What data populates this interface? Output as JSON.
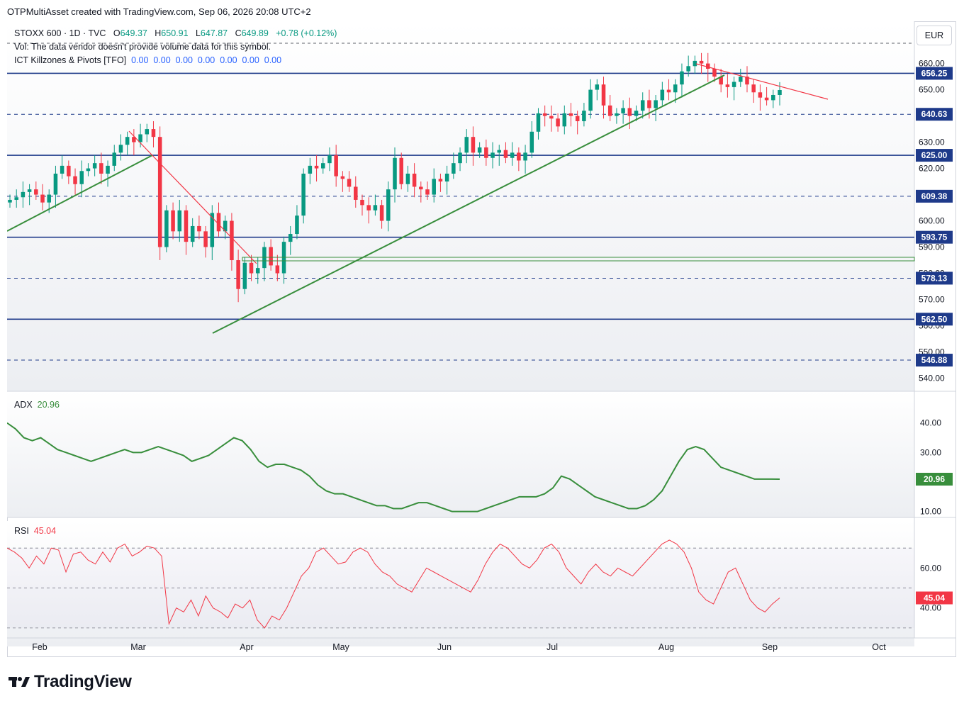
{
  "caption": "OTPMultiAsset created with TradingView.com, Sep 06, 2026 20:08 UTC+2",
  "legend": {
    "symbol": "STOXX 600 · 1D · TVC",
    "open_label": "O",
    "open": "649.37",
    "high_label": "H",
    "high": "650.91",
    "low_label": "L",
    "low": "647.87",
    "close_label": "C",
    "close": "649.89",
    "change": "+0.78 (+0.12%)",
    "vol_line": "Vol: The data vendor doesn't provide volume data for this symbol.",
    "indicator_name": "ICT Killzones & Pivots [TFO]",
    "indicator_values": "0.00  0.00  0.00  0.00  0.00  0.00  0.00"
  },
  "currency_button": "EUR",
  "adx": {
    "label": "ADX",
    "value": "20.96",
    "axis_ticks": [
      "40.00",
      "30.00",
      "10.00"
    ],
    "last_label": "20.96"
  },
  "rsi": {
    "label": "RSI",
    "value": "45.04",
    "axis_ticks": [
      "60.00",
      "40.00"
    ],
    "last_label": "45.04"
  },
  "branding": "TradingView",
  "colors": {
    "up": "#089981",
    "down": "#f23645",
    "trend_green": "#388e3c",
    "trend_red": "#f23645",
    "level": "#1e3a8a",
    "adx": "#388e3c",
    "rsi": "#f23645"
  },
  "chart_data": {
    "type": "candlestick",
    "symbol": "STOXX 600",
    "timeframe": "1D",
    "x_axis_months": [
      "Feb",
      "Mar",
      "Apr",
      "May",
      "Jun",
      "Jul",
      "Aug",
      "Sep",
      "Oct"
    ],
    "y_axis_ticks": [
      "660.00",
      "650.00",
      "630.00",
      "620.00",
      "600.00",
      "590.00",
      "580.00",
      "570.00",
      "560.00",
      "550.00",
      "540.00"
    ],
    "levels": [
      {
        "value": 656.25,
        "style": "solid",
        "label": "656.25"
      },
      {
        "value": 640.63,
        "style": "dashed",
        "label": "640.63"
      },
      {
        "value": 625.0,
        "style": "solid",
        "label": "625.00"
      },
      {
        "value": 609.38,
        "style": "dashed",
        "label": "609.38"
      },
      {
        "value": 593.75,
        "style": "solid",
        "label": "593.75"
      },
      {
        "value": 578.13,
        "style": "dashed",
        "label": "578.13"
      },
      {
        "value": 562.5,
        "style": "solid",
        "label": "562.50"
      },
      {
        "value": 546.88,
        "style": "dashed",
        "label": "546.88"
      }
    ],
    "close": [
      608,
      609,
      611,
      612,
      610,
      607,
      610,
      618,
      621,
      617,
      614,
      619,
      620,
      622,
      618,
      621,
      626,
      629,
      632,
      630,
      633,
      635,
      632,
      590,
      604,
      596,
      604,
      592,
      598,
      596,
      590,
      603,
      596,
      600,
      585,
      574,
      584,
      580,
      582,
      590,
      583,
      580,
      592,
      595,
      602,
      618,
      621,
      620,
      622,
      625,
      617,
      616,
      613,
      608,
      606,
      604,
      606,
      600,
      612,
      624,
      614,
      618,
      613,
      612,
      610,
      616,
      615,
      618,
      622,
      626,
      632,
      626,
      628,
      624,
      626,
      627,
      624,
      626,
      623,
      626,
      634,
      641,
      640,
      639,
      636,
      641,
      640,
      638,
      642,
      650,
      652,
      644,
      640,
      641,
      643,
      640,
      642,
      646,
      643,
      646,
      650,
      649,
      652,
      657,
      659,
      661,
      660,
      658,
      655,
      652,
      651,
      653,
      655,
      652,
      649,
      647,
      646,
      648,
      649.89
    ],
    "adx": [
      40,
      38,
      35,
      34,
      35,
      33,
      31,
      30,
      29,
      28,
      27,
      28,
      29,
      30,
      31,
      30,
      30,
      31,
      32,
      31,
      30,
      29,
      27,
      28,
      29,
      31,
      33,
      35,
      34,
      31,
      27,
      25,
      26,
      26,
      25,
      24,
      22,
      19,
      17,
      16,
      16,
      15,
      14,
      13,
      12,
      12,
      11,
      11,
      12,
      13,
      13,
      12,
      11,
      10,
      10,
      10,
      10,
      11,
      12,
      13,
      14,
      15,
      15,
      15,
      16,
      18,
      22,
      21,
      19,
      17,
      15,
      14,
      13,
      12,
      11,
      11,
      12,
      14,
      17,
      22,
      27,
      31,
      32,
      31,
      28,
      25,
      24,
      23,
      22,
      21,
      21,
      21,
      20.96
    ],
    "rsi": [
      70,
      68,
      65,
      60,
      66,
      62,
      70,
      69,
      58,
      67,
      68,
      64,
      62,
      68,
      63,
      70,
      72,
      66,
      68,
      71,
      70,
      66,
      32,
      40,
      38,
      44,
      36,
      46,
      40,
      38,
      35,
      42,
      40,
      44,
      34,
      30,
      36,
      34,
      40,
      48,
      56,
      60,
      68,
      70,
      66,
      62,
      63,
      68,
      70,
      68,
      62,
      58,
      56,
      52,
      50,
      48,
      54,
      60,
      58,
      56,
      54,
      52,
      50,
      48,
      54,
      62,
      68,
      72,
      70,
      66,
      62,
      60,
      64,
      70,
      72,
      68,
      60,
      56,
      52,
      58,
      62,
      58,
      56,
      60,
      58,
      56,
      60,
      64,
      68,
      72,
      74,
      72,
      68,
      60,
      48,
      44,
      42,
      50,
      58,
      60,
      52,
      44,
      40,
      38,
      42,
      45.04
    ],
    "adx_ylim": [
      8,
      44
    ],
    "rsi_ylim": [
      25,
      80
    ],
    "price_ylim": [
      535,
      668
    ]
  }
}
